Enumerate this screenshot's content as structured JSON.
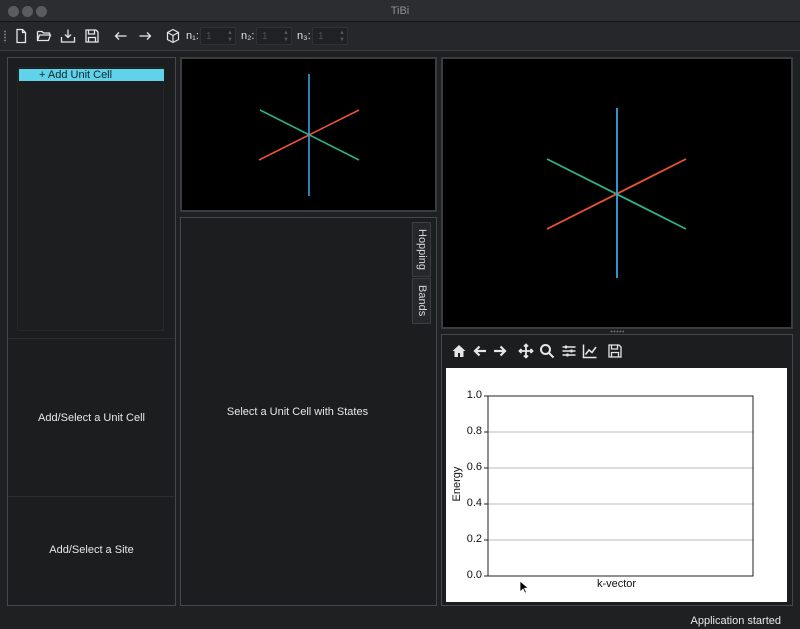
{
  "window": {
    "title": "TiBi"
  },
  "toolbar": {
    "dims": [
      {
        "label": "n₁:",
        "value": "1"
      },
      {
        "label": "n₂:",
        "value": "1"
      },
      {
        "label": "n₃:",
        "value": "1"
      }
    ],
    "icons": [
      "new-file-icon",
      "open-folder-icon",
      "import-icon",
      "save-icon",
      "undo-arrow-icon",
      "redo-arrow-icon",
      "cube-icon"
    ]
  },
  "left_panel": {
    "add_unit_cell_label": "+ Add Unit Cell",
    "unit_cell_placeholder": "Add/Select a Unit Cell",
    "site_placeholder": "Add/Select a Site"
  },
  "center_panel": {
    "placeholder": "Select a Unit Cell with States",
    "tabs": [
      "Hopping",
      "Bands"
    ]
  },
  "plot": {
    "toolbar_icons": [
      "home-icon",
      "back-arrow-icon",
      "forward-arrow-icon",
      "pan-icon",
      "zoom-icon",
      "configure-subplots-icon",
      "edit-axis-icon",
      "save-figure-icon"
    ]
  },
  "chart_data": {
    "type": "line",
    "title": "",
    "xlabel": "k-vector",
    "ylabel": "Energy",
    "ylim": [
      0.0,
      1.0
    ],
    "yticks": [
      "0.0",
      "0.2",
      "0.4",
      "0.6",
      "0.8",
      "1.0"
    ],
    "grid": "horizontal",
    "series": []
  },
  "colors": {
    "axis_x": "#e8542f",
    "axis_y": "#2eb08a",
    "axis_z": "#3aa2dd",
    "accent": "#60d2ea"
  },
  "status": {
    "message": "Application started"
  }
}
